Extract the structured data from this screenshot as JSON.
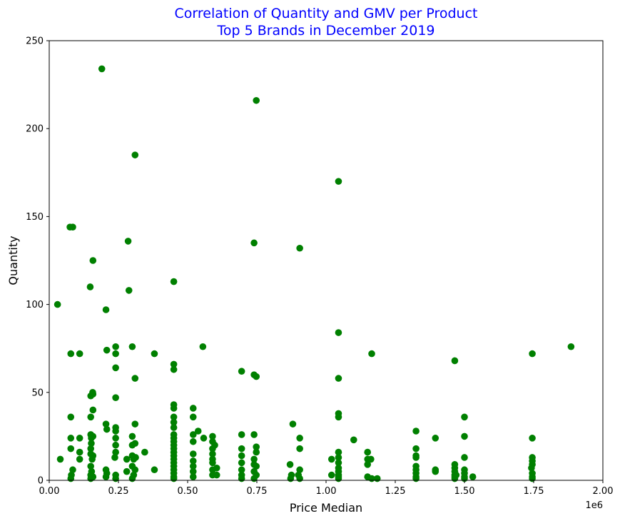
{
  "chart_data": {
    "type": "scatter",
    "title_lines": [
      "Correlation of Quantity and GMV per Product",
      "Top 5 Brands in December 2019"
    ],
    "xlabel": "Price Median",
    "ylabel": "Quantity",
    "x_offset_label": "1e6",
    "xlim": [
      0,
      2000000
    ],
    "ylim": [
      0,
      250
    ],
    "x_ticks": [
      0,
      250000,
      500000,
      750000,
      1000000,
      1250000,
      1500000,
      1750000,
      2000000
    ],
    "x_tick_labels": [
      "0.00",
      "0.25",
      "0.50",
      "0.75",
      "1.00",
      "1.25",
      "1.50",
      "1.75",
      "2.00"
    ],
    "y_ticks": [
      0,
      50,
      100,
      150,
      200,
      250
    ],
    "y_tick_labels": [
      "0",
      "50",
      "100",
      "150",
      "200",
      "250"
    ],
    "grid": false,
    "colors": {
      "points": "#008000",
      "title": "#0000ff",
      "axes": "#000000"
    },
    "points": [
      [
        30000,
        100
      ],
      [
        40000,
        12
      ],
      [
        75000,
        144
      ],
      [
        85000,
        144
      ],
      [
        78000,
        72
      ],
      [
        78000,
        36
      ],
      [
        78000,
        24
      ],
      [
        78000,
        18
      ],
      [
        80000,
        3
      ],
      [
        78000,
        1
      ],
      [
        85000,
        6
      ],
      [
        110000,
        72
      ],
      [
        110000,
        24
      ],
      [
        110000,
        16
      ],
      [
        110000,
        12
      ],
      [
        148000,
        110
      ],
      [
        158000,
        125
      ],
      [
        150000,
        48
      ],
      [
        157000,
        50
      ],
      [
        158000,
        49
      ],
      [
        150000,
        36
      ],
      [
        150000,
        26
      ],
      [
        152000,
        24
      ],
      [
        158000,
        25
      ],
      [
        150000,
        18
      ],
      [
        150000,
        15
      ],
      [
        155000,
        12
      ],
      [
        150000,
        8
      ],
      [
        153000,
        5
      ],
      [
        150000,
        3
      ],
      [
        158000,
        2
      ],
      [
        150000,
        1
      ],
      [
        158000,
        40
      ],
      [
        158000,
        14
      ],
      [
        152000,
        21
      ],
      [
        190000,
        234
      ],
      [
        205000,
        97
      ],
      [
        208000,
        74
      ],
      [
        205000,
        32
      ],
      [
        208000,
        29
      ],
      [
        205000,
        6
      ],
      [
        208000,
        4
      ],
      [
        205000,
        2
      ],
      [
        240000,
        76
      ],
      [
        240000,
        72
      ],
      [
        240000,
        64
      ],
      [
        240000,
        47
      ],
      [
        240000,
        30
      ],
      [
        240000,
        28
      ],
      [
        240000,
        24
      ],
      [
        240000,
        20
      ],
      [
        240000,
        16
      ],
      [
        237000,
        13
      ],
      [
        240000,
        3
      ],
      [
        240000,
        1
      ],
      [
        280000,
        12
      ],
      [
        285000,
        136
      ],
      [
        288000,
        108
      ],
      [
        280000,
        5
      ],
      [
        300000,
        76
      ],
      [
        310000,
        185
      ],
      [
        310000,
        58
      ],
      [
        310000,
        32
      ],
      [
        300000,
        25
      ],
      [
        310000,
        21
      ],
      [
        300000,
        20
      ],
      [
        300000,
        14
      ],
      [
        305000,
        12
      ],
      [
        300000,
        8
      ],
      [
        310000,
        6
      ],
      [
        305000,
        3
      ],
      [
        300000,
        1
      ],
      [
        312000,
        13
      ],
      [
        345000,
        16
      ],
      [
        380000,
        72
      ],
      [
        380000,
        6
      ],
      [
        450000,
        113
      ],
      [
        450000,
        66
      ],
      [
        450000,
        63
      ],
      [
        450000,
        43
      ],
      [
        450000,
        41
      ],
      [
        450000,
        36
      ],
      [
        450000,
        33
      ],
      [
        450000,
        30
      ],
      [
        450000,
        26
      ],
      [
        450000,
        24
      ],
      [
        450000,
        22
      ],
      [
        450000,
        20
      ],
      [
        450000,
        18
      ],
      [
        450000,
        16
      ],
      [
        450000,
        14
      ],
      [
        450000,
        12
      ],
      [
        450000,
        10
      ],
      [
        450000,
        8
      ],
      [
        450000,
        6
      ],
      [
        450000,
        4
      ],
      [
        450000,
        2
      ],
      [
        450000,
        1
      ],
      [
        520000,
        41
      ],
      [
        520000,
        36
      ],
      [
        520000,
        26
      ],
      [
        520000,
        22
      ],
      [
        520000,
        15
      ],
      [
        520000,
        11
      ],
      [
        520000,
        8
      ],
      [
        520000,
        5
      ],
      [
        520000,
        2
      ],
      [
        538000,
        28
      ],
      [
        555000,
        76
      ],
      [
        558000,
        24
      ],
      [
        590000,
        25
      ],
      [
        590000,
        22
      ],
      [
        590000,
        18
      ],
      [
        590000,
        15
      ],
      [
        590000,
        12
      ],
      [
        590000,
        10
      ],
      [
        590000,
        6
      ],
      [
        590000,
        3
      ],
      [
        605000,
        3
      ],
      [
        605000,
        7
      ],
      [
        598000,
        20
      ],
      [
        695000,
        62
      ],
      [
        695000,
        26
      ],
      [
        695000,
        18
      ],
      [
        695000,
        14
      ],
      [
        695000,
        10
      ],
      [
        695000,
        6
      ],
      [
        695000,
        3
      ],
      [
        695000,
        1
      ],
      [
        740000,
        135
      ],
      [
        740000,
        60
      ],
      [
        748000,
        59
      ],
      [
        748000,
        216
      ],
      [
        740000,
        26
      ],
      [
        748000,
        19
      ],
      [
        748000,
        16
      ],
      [
        740000,
        12
      ],
      [
        740000,
        9
      ],
      [
        748000,
        8
      ],
      [
        740000,
        5
      ],
      [
        748000,
        3
      ],
      [
        740000,
        1
      ],
      [
        870000,
        9
      ],
      [
        880000,
        32
      ],
      [
        875000,
        3
      ],
      [
        872000,
        1
      ],
      [
        905000,
        132
      ],
      [
        905000,
        24
      ],
      [
        905000,
        18
      ],
      [
        905000,
        6
      ],
      [
        900000,
        3
      ],
      [
        905000,
        1
      ],
      [
        1020000,
        12
      ],
      [
        1020000,
        3
      ],
      [
        1045000,
        170
      ],
      [
        1045000,
        84
      ],
      [
        1045000,
        58
      ],
      [
        1045000,
        38
      ],
      [
        1045000,
        36
      ],
      [
        1045000,
        16
      ],
      [
        1045000,
        13
      ],
      [
        1045000,
        10
      ],
      [
        1045000,
        7
      ],
      [
        1045000,
        5
      ],
      [
        1045000,
        3
      ],
      [
        1045000,
        2
      ],
      [
        1045000,
        1
      ],
      [
        1100000,
        23
      ],
      [
        1150000,
        16
      ],
      [
        1150000,
        12
      ],
      [
        1150000,
        9
      ],
      [
        1150000,
        2
      ],
      [
        1165000,
        72
      ],
      [
        1162000,
        12
      ],
      [
        1165000,
        1
      ],
      [
        1185000,
        1
      ],
      [
        1325000,
        28
      ],
      [
        1325000,
        18
      ],
      [
        1325000,
        14
      ],
      [
        1325000,
        13
      ],
      [
        1325000,
        8
      ],
      [
        1325000,
        6
      ],
      [
        1325000,
        4
      ],
      [
        1325000,
        2
      ],
      [
        1325000,
        1
      ],
      [
        1395000,
        24
      ],
      [
        1395000,
        6
      ],
      [
        1395000,
        5
      ],
      [
        1465000,
        68
      ],
      [
        1465000,
        9
      ],
      [
        1465000,
        7
      ],
      [
        1465000,
        5
      ],
      [
        1465000,
        3
      ],
      [
        1465000,
        2
      ],
      [
        1465000,
        1
      ],
      [
        1470000,
        3
      ],
      [
        1500000,
        36
      ],
      [
        1500000,
        25
      ],
      [
        1500000,
        13
      ],
      [
        1500000,
        6
      ],
      [
        1500000,
        4
      ],
      [
        1500000,
        2
      ],
      [
        1500000,
        1
      ],
      [
        1530000,
        2
      ],
      [
        1745000,
        72
      ],
      [
        1745000,
        24
      ],
      [
        1745000,
        13
      ],
      [
        1745000,
        11
      ],
      [
        1745000,
        9
      ],
      [
        1742000,
        7
      ],
      [
        1745000,
        4
      ],
      [
        1745000,
        2
      ],
      [
        1745000,
        1
      ],
      [
        1885000,
        76
      ]
    ]
  }
}
